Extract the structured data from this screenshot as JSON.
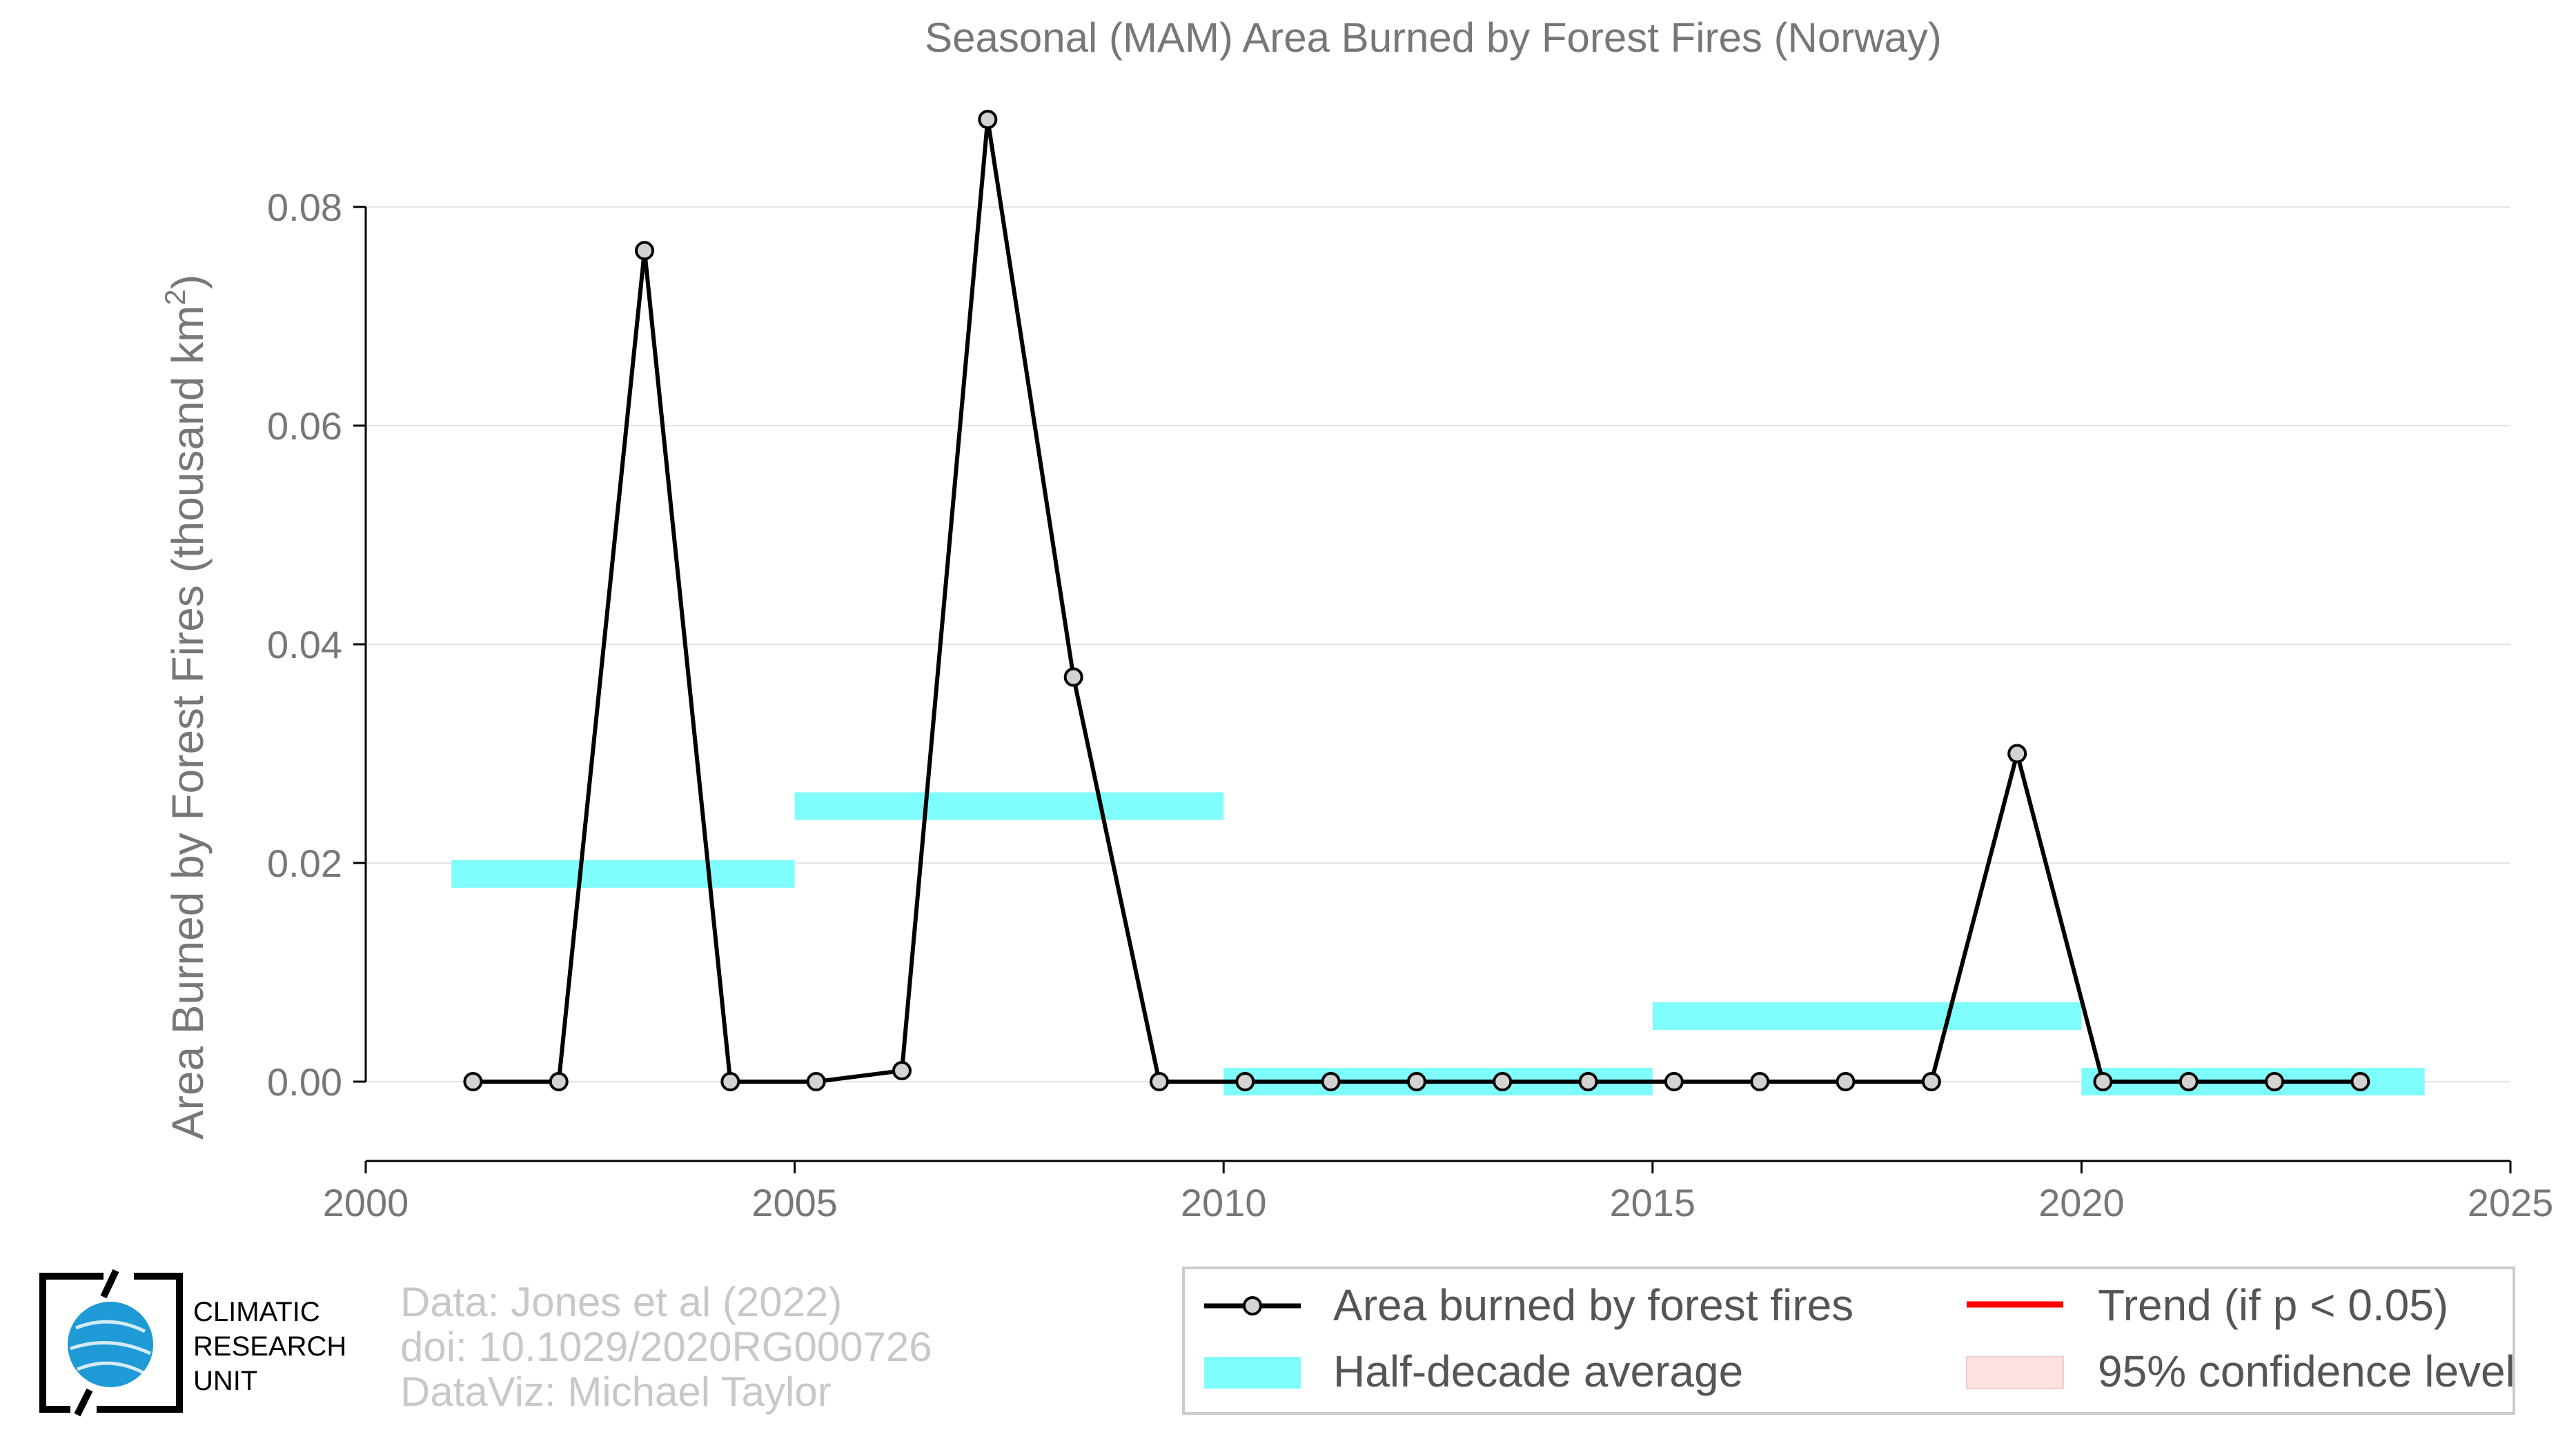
{
  "chart_data": {
    "type": "line",
    "title": "Seasonal (MAM) Area Burned by Forest Fires (Norway)",
    "ylabel": "Area Burned by Forest Fires (thousand km",
    "ylabel_superscript": "2",
    "ylabel_close": ")",
    "xlim": [
      2000,
      2025
    ],
    "ylim": [
      -0.007,
      0.09
    ],
    "xticks": [
      2000,
      2005,
      2010,
      2015,
      2020,
      2025
    ],
    "xtick_labels": [
      "2000",
      "2005",
      "2010",
      "2015",
      "2020",
      "2025"
    ],
    "yticks": [
      0.0,
      0.02,
      0.04,
      0.06,
      0.08
    ],
    "ytick_labels": [
      "0.00",
      "0.02",
      "0.04",
      "0.06",
      "0.08"
    ],
    "grid": true,
    "series": [
      {
        "name": "Area burned by forest fires",
        "color": "#000000",
        "marker_fill": "#d3d3d3",
        "x": [
          2001.25,
          2002.25,
          2003.25,
          2004.25,
          2005.25,
          2006.25,
          2007.25,
          2008.25,
          2009.25,
          2010.25,
          2011.25,
          2012.25,
          2013.25,
          2014.25,
          2015.25,
          2016.25,
          2017.25,
          2018.25,
          2019.25,
          2020.25,
          2021.25,
          2022.25,
          2023.25
        ],
        "values": [
          0.0,
          0.0,
          0.076,
          0.0,
          0.0,
          0.001,
          0.088,
          0.037,
          0.0,
          0.0,
          0.0,
          0.0,
          0.0,
          0.0,
          0.0,
          0.0,
          0.0,
          0.0,
          0.03,
          0.0,
          0.0,
          0.0,
          0.0
        ]
      }
    ],
    "half_decade_average": {
      "name": "Half-decade average",
      "color": "#7ffcfc",
      "segments": [
        {
          "x0": 2001,
          "x1": 2005,
          "value": 0.019
        },
        {
          "x0": 2005,
          "x1": 2010,
          "value": 0.0252
        },
        {
          "x0": 2010,
          "x1": 2015,
          "value": 0.0
        },
        {
          "x0": 2015,
          "x1": 2020,
          "value": 0.006
        },
        {
          "x0": 2020,
          "x1": 2024,
          "value": 0.0
        }
      ]
    },
    "legend": {
      "placement": "bottom-right",
      "entries": [
        {
          "label": "Area burned by forest fires",
          "kind": "line-marker",
          "color": "#000000"
        },
        {
          "label": "Trend (if p < 0.05)",
          "kind": "line",
          "color": "#ff0000"
        },
        {
          "label": "Half-decade average",
          "kind": "band",
          "color": "#7ffcfc"
        },
        {
          "label": "95% confidence level",
          "kind": "band",
          "color": "#fde0e0"
        }
      ]
    }
  },
  "credits": {
    "line1": "Data: Jones et al (2022)",
    "line2": "doi: 10.1029/2020RG000726",
    "line3": "DataViz: Michael Taylor"
  },
  "logo": {
    "line1": "CLIMATIC",
    "line2": "RESEARCH",
    "line3": "UNIT",
    "globe_color": "#1e9ad6"
  }
}
